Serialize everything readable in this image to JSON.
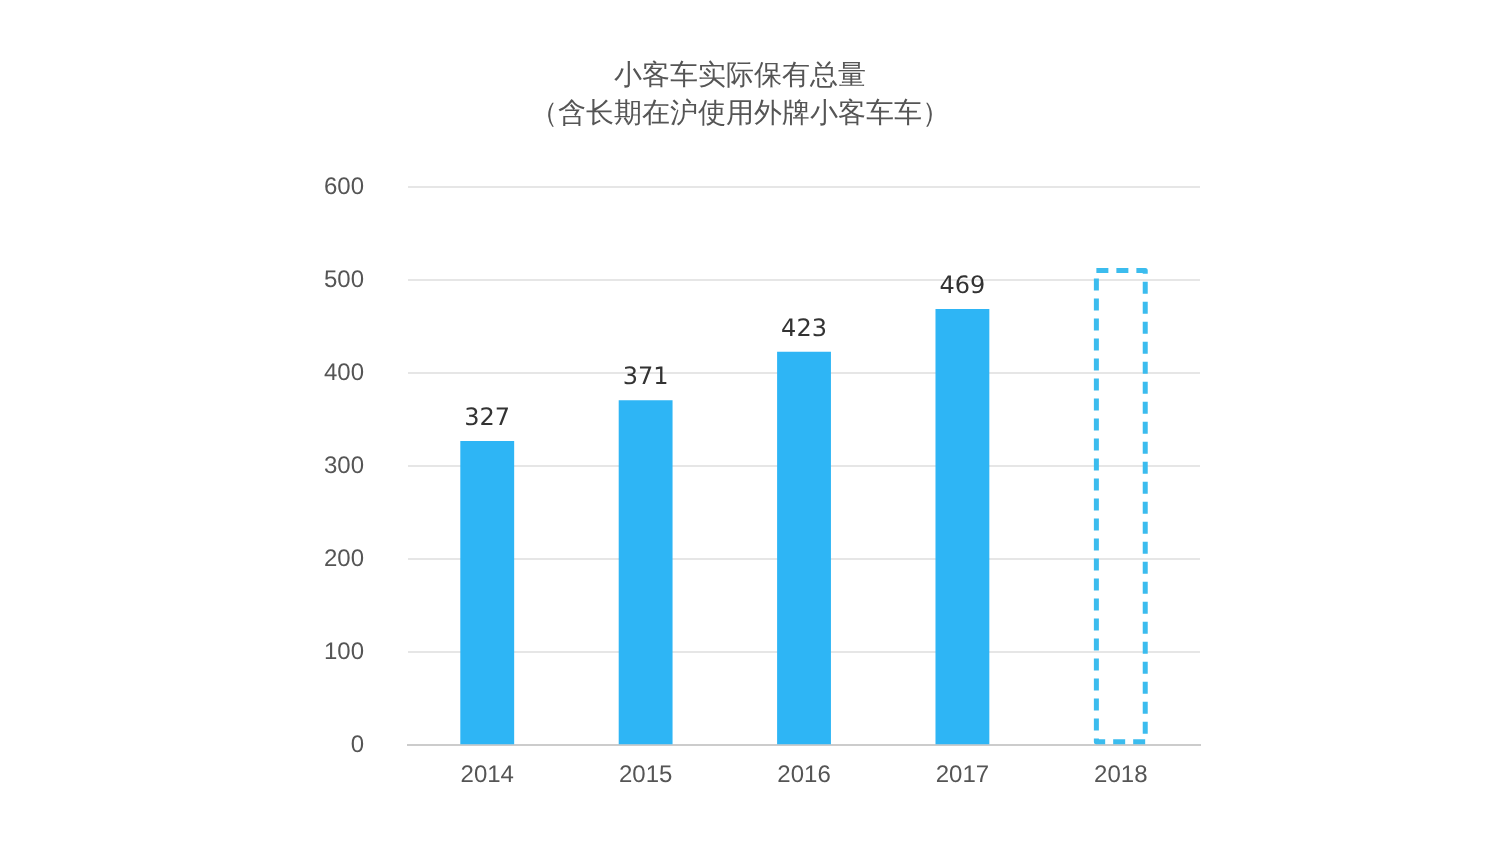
{
  "chart_data": {
    "type": "bar",
    "title": "小客车实际保有总量",
    "subtitle": "（含长期在沪使用外牌小客车车）",
    "categories": [
      "2014",
      "2015",
      "2016",
      "2017",
      "2018"
    ],
    "stacked": true,
    "series": [
      {
        "color": "#2eb5f5",
        "values": [
          327,
          371,
          423,
          469,
          null
        ],
        "value_labels": [
          "327",
          "371",
          "423",
          "469",
          null
        ]
      },
      {
        "color": "#3bbcee",
        "line_style": "dashed",
        "values": [
          null,
          null,
          null,
          null,
          513
        ]
      }
    ],
    "ylim": [
      0,
      600
    ],
    "yticks": [
      0,
      100,
      200,
      300,
      400,
      500,
      600
    ],
    "grid": "y",
    "legend": false
  }
}
